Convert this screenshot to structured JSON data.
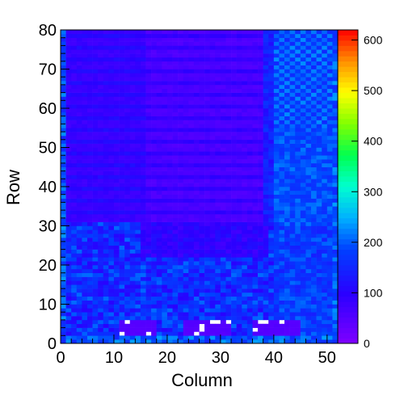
{
  "chart_data": {
    "type": "heatmap",
    "title": "",
    "xlabel": "Column",
    "ylabel": "Row",
    "xlim": [
      0,
      52
    ],
    "ylim": [
      0,
      80
    ],
    "zlim": [
      0,
      620
    ],
    "x_ticks": [
      0,
      10,
      20,
      30,
      40,
      50
    ],
    "y_ticks": [
      0,
      10,
      20,
      30,
      40,
      50,
      60,
      70,
      80
    ],
    "z_ticks": [
      0,
      100,
      200,
      300,
      400,
      500,
      600
    ],
    "colormap": "rainbow (violet → blue → cyan → green → yellow → orange → red)",
    "grid": false,
    "cells_nx": 52,
    "cells_ny": 80,
    "regions_note": "Top-center rows ~30-80 (cols 4-39) are low values (~40-90, violet) with banding; right side cols 40-52 higher (~150-220, cyan) with checker pattern above row 55; bottom rows 0-30 mixed blue/cyan (~100-200); three empty (white) rectangles near row 2-6 at cols 11-17, 23-31, 36-44."
  }
}
